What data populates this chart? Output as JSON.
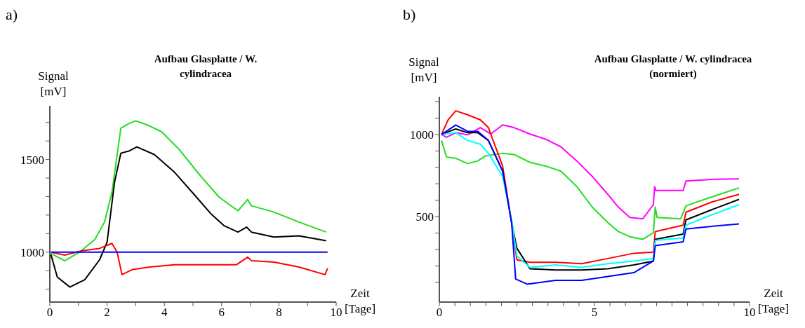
{
  "chart_data": [
    {
      "type": "line",
      "title": "Aufbau Glasplatte / W. cylindracea",
      "ylabel": "Signal [mV]",
      "xlabel": "Zeit [Tage]",
      "annotations": [
        "a)"
      ],
      "xlim": [
        0,
        10
      ],
      "xticks": [
        0,
        {
          "value": 1,
          "label": null
        },
        2,
        {
          "value": 3,
          "label": null
        },
        4,
        {
          "value": 5,
          "label": null
        },
        6,
        {
          "value": 7,
          "label": null
        },
        8,
        {
          "value": 9,
          "label": null
        },
        10
      ],
      "ylim": [
        730,
        1790
      ],
      "yticks": [
        {
          "value": 800,
          "label": null
        },
        {
          "value": 900,
          "label": null
        },
        1000,
        {
          "value": 1100,
          "label": null
        },
        {
          "value": 1200,
          "label": null
        },
        {
          "value": 1300,
          "label": null
        },
        {
          "value": 1400,
          "label": null
        },
        1500,
        {
          "value": 1600,
          "label": null
        },
        {
          "value": 1700,
          "label": null
        }
      ],
      "marker": "none",
      "line_style": "solid",
      "series": [
        {
          "color": "#22dd22",
          "x": [
            0.04,
            0.52,
            1.04,
            1.57,
            1.91,
            2.17,
            2.48,
            2.78,
            3.0,
            3.48,
            3.91,
            4.52,
            5.22,
            5.91,
            6.57,
            6.91,
            7.04,
            7.83,
            8.7,
            9.65
          ],
          "values": [
            993,
            953,
            1000,
            1068,
            1162,
            1324,
            1669,
            1696,
            1709,
            1682,
            1649,
            1554,
            1419,
            1297,
            1223,
            1284,
            1250,
            1216,
            1162,
            1108
          ]
        },
        {
          "color": "#000000",
          "x": [
            0.04,
            0.26,
            0.7,
            1.22,
            1.74,
            2.0,
            2.26,
            2.48,
            2.78,
            3.04,
            3.65,
            4.35,
            5.04,
            5.65,
            6.09,
            6.57,
            6.87,
            7.04,
            7.83,
            8.7,
            9.65
          ],
          "values": [
            986,
            865,
            811,
            851,
            959,
            1054,
            1378,
            1534,
            1547,
            1568,
            1527,
            1432,
            1311,
            1203,
            1142,
            1108,
            1135,
            1108,
            1081,
            1088,
            1061
          ]
        },
        {
          "color": "#ff0000",
          "x": [
            0.04,
            0.52,
            1.13,
            1.74,
            2.17,
            2.35,
            2.52,
            2.87,
            3.48,
            4.35,
            5.22,
            6.52,
            6.91,
            7.04,
            7.83,
            8.7,
            9.61,
            9.7
          ],
          "values": [
            1000,
            984,
            1007,
            1020,
            1047,
            1000,
            878,
            905,
            919,
            932,
            932,
            932,
            973,
            953,
            946,
            919,
            878,
            912
          ]
        },
        {
          "color": "#0000ff",
          "x": [
            0.04,
            9.7
          ],
          "values": [
            1000,
            1000
          ]
        }
      ]
    },
    {
      "type": "line",
      "title": "Aufbau Glasplatte / W. cylindracea",
      "subtitle": "(normiert)",
      "ylabel": "Signal [mV]",
      "xlabel": "Zeit [Tage]",
      "annotations": [
        "b)"
      ],
      "xlim": [
        0,
        10
      ],
      "xticks": [
        0,
        {
          "value": 0.5,
          "label": null
        },
        {
          "value": 1,
          "label": null
        },
        {
          "value": 1.5,
          "label": null
        },
        {
          "value": 2,
          "label": null
        },
        {
          "value": 2.5,
          "label": null
        },
        {
          "value": 3,
          "label": null
        },
        {
          "value": 3.5,
          "label": null
        },
        {
          "value": 4,
          "label": null
        },
        {
          "value": 4.5,
          "label": null
        },
        5,
        {
          "value": 5.5,
          "label": null
        },
        {
          "value": 6,
          "label": null
        },
        {
          "value": 6.5,
          "label": null
        },
        {
          "value": 7,
          "label": null
        },
        {
          "value": 7.5,
          "label": null
        },
        {
          "value": 8,
          "label": null
        },
        {
          "value": 8.5,
          "label": null
        },
        {
          "value": 9,
          "label": null
        },
        {
          "value": 9.5,
          "label": null
        },
        10
      ],
      "ylim": [
        -20,
        1230
      ],
      "yticks": [
        {
          "value": 100,
          "label": null
        },
        {
          "value": 200,
          "label": null
        },
        {
          "value": 300,
          "label": null
        },
        {
          "value": 400,
          "label": null
        },
        500,
        {
          "value": 600,
          "label": null
        },
        {
          "value": 700,
          "label": null
        },
        {
          "value": 800,
          "label": null
        },
        {
          "value": 900,
          "label": null
        },
        1000,
        {
          "value": 1100,
          "label": null
        },
        {
          "value": 1200,
          "label": null
        }
      ],
      "marker": "none",
      "line_style": "solid",
      "series": [
        {
          "color": "#ff00ff",
          "x": [
            0.07,
            0.23,
            0.53,
            0.91,
            1.32,
            1.66,
            2.04,
            2.41,
            2.92,
            3.42,
            3.92,
            4.43,
            4.93,
            5.43,
            5.77,
            6.14,
            6.56,
            6.9,
            6.94,
            6.98,
            7.86,
            7.95,
            8.78,
            9.66
          ],
          "values": [
            1000,
            983,
            1011,
            998,
            1042,
            1003,
            1058,
            1042,
            1003,
            972,
            925,
            839,
            745,
            636,
            558,
            495,
            487,
            573,
            683,
            659,
            659,
            717,
            727,
            730
          ]
        },
        {
          "color": "#22dd22",
          "x": [
            0.07,
            0.23,
            0.53,
            0.91,
            1.24,
            1.49,
            2.04,
            2.41,
            2.92,
            3.42,
            3.92,
            4.43,
            4.93,
            5.43,
            5.77,
            6.14,
            6.56,
            6.9,
            6.96,
            7.02,
            7.78,
            7.95,
            8.78,
            9.66
          ],
          "values": [
            964,
            863,
            855,
            823,
            839,
            870,
            886,
            878,
            831,
            808,
            777,
            683,
            558,
            464,
            409,
            378,
            362,
            402,
            558,
            495,
            487,
            566,
            620,
            675
          ]
        },
        {
          "color": "#ff0000",
          "x": [
            0.07,
            0.28,
            0.53,
            0.91,
            1.32,
            1.58,
            2.04,
            2.33,
            2.5,
            2.92,
            3.75,
            4.59,
            5.43,
            6.27,
            6.9,
            6.96,
            7.86,
            7.95,
            8.78,
            9.66
          ],
          "values": [
            1000,
            1089,
            1144,
            1120,
            1089,
            1042,
            808,
            464,
            237,
            222,
            222,
            214,
            245,
            277,
            284,
            409,
            448,
            527,
            589,
            636
          ]
        },
        {
          "color": "#000000",
          "x": [
            0.07,
            0.53,
            0.91,
            1.24,
            1.58,
            2.04,
            2.33,
            2.5,
            2.92,
            3.75,
            4.59,
            5.43,
            6.27,
            6.9,
            6.96,
            7.86,
            7.95,
            8.78,
            9.66
          ],
          "values": [
            1000,
            1034,
            1011,
            1011,
            964,
            777,
            464,
            308,
            183,
            175,
            175,
            183,
            206,
            230,
            362,
            394,
            480,
            542,
            605
          ]
        },
        {
          "color": "#00ffff",
          "x": [
            0.07,
            0.53,
            0.91,
            1.32,
            1.58,
            2.04,
            2.33,
            2.5,
            2.92,
            3.75,
            4.59,
            5.43,
            6.27,
            6.9,
            6.96,
            7.86,
            7.95,
            8.78,
            9.66
          ],
          "values": [
            1000,
            1011,
            964,
            941,
            886,
            745,
            480,
            261,
            191,
            206,
            191,
            214,
            230,
            245,
            355,
            370,
            448,
            511,
            573
          ]
        },
        {
          "color": "#0000ff",
          "x": [
            0.07,
            0.53,
            0.91,
            1.24,
            1.58,
            2.04,
            2.33,
            2.46,
            2.83,
            3.75,
            4.59,
            5.43,
            6.27,
            6.9,
            6.96,
            7.86,
            7.95,
            8.78,
            9.66
          ],
          "values": [
            1000,
            1058,
            1019,
            1019,
            964,
            777,
            464,
            120,
            89,
            112,
            112,
            136,
            159,
            230,
            323,
            347,
            425,
            441,
            456
          ]
        }
      ]
    }
  ]
}
